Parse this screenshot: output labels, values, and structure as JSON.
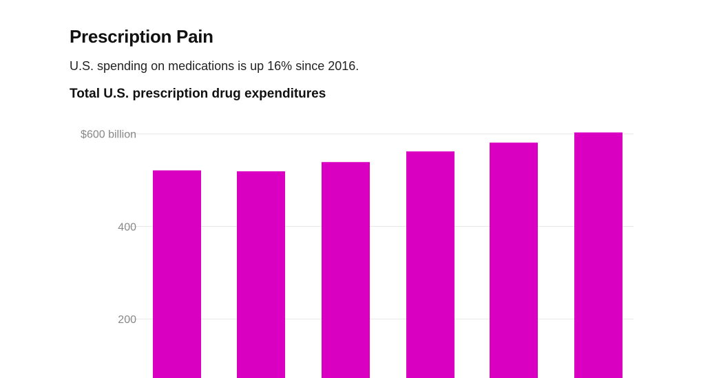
{
  "header": {
    "title": "Prescription Pain",
    "subtitle": "U.S. spending on medications is up 16% since 2016."
  },
  "chart_data": {
    "type": "bar",
    "title": "Total U.S. prescription drug expenditures",
    "xlabel": "",
    "ylabel": "",
    "values": [
      521,
      519,
      539,
      562,
      581,
      603
    ],
    "ylim": [
      0,
      600
    ],
    "yticks": [
      {
        "value": 200,
        "label": "200"
      },
      {
        "value": 400,
        "label": "400"
      },
      {
        "value": 600,
        "label": "$600 billion"
      }
    ],
    "grid": true,
    "bar_color": "#d900c1",
    "grid_color": "#e6e6e6"
  }
}
